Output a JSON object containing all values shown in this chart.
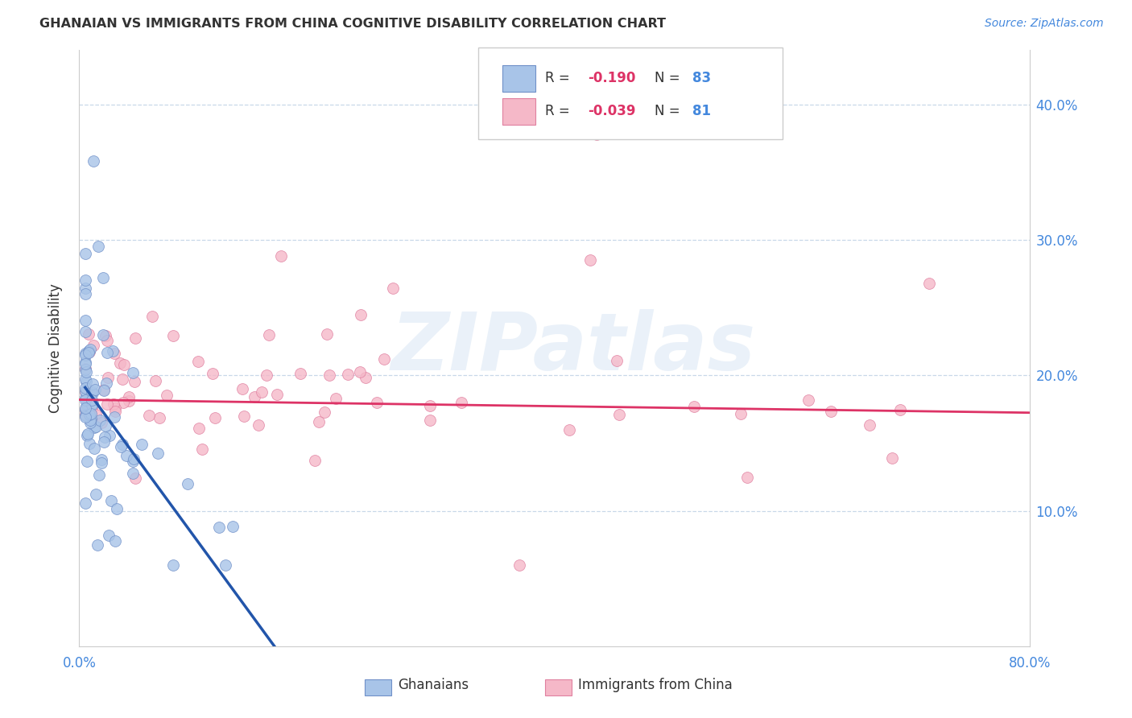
{
  "title": "GHANAIAN VS IMMIGRANTS FROM CHINA COGNITIVE DISABILITY CORRELATION CHART",
  "source": "Source: ZipAtlas.com",
  "ylabel": "Cognitive Disability",
  "xlim": [
    0.0,
    0.8
  ],
  "ylim": [
    0.0,
    0.44
  ],
  "blue_color": "#a8c4e8",
  "pink_color": "#f5b8c8",
  "blue_edge": "#7090c8",
  "pink_edge": "#e080a0",
  "trend_blue": "#2255aa",
  "trend_pink": "#dd3366",
  "dash_color": "#b0cce8",
  "watermark": "ZIPatlas",
  "tick_color": "#4488dd",
  "text_color": "#333333",
  "grid_color": "#c8d8e8",
  "legend_r_color": "#dd3366",
  "legend_n_color": "#4488dd"
}
